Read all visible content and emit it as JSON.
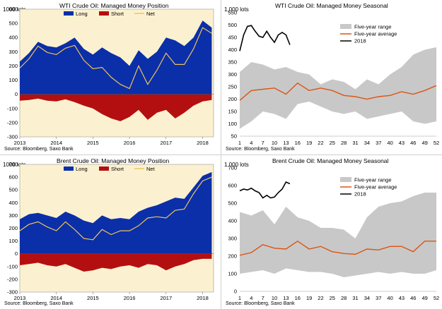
{
  "colors": {
    "plot_bg_left": "#fbf1d0",
    "long": "#0a2fa8",
    "short": "#b40f10",
    "net": "#f0c25a",
    "range": "#c8c8c8",
    "average": "#dd5412",
    "current": "#000000"
  },
  "panels": [
    {
      "id": "wti-position",
      "title": "WTI Crude Oil: Managed Money Position",
      "unit": "1000 lots",
      "source": "Source: Bloomberg, Saxo Bank",
      "legend": [
        "Long",
        "Short",
        "Net"
      ]
    },
    {
      "id": "wti-seasonal",
      "title": "WTI Crude Oil: Managed Money Seasonal",
      "unit": "1,000 lots",
      "source": "Source: Bloomberg, Saxo Bank",
      "legend": [
        "Five-year range",
        "Five-year average",
        "2018"
      ]
    },
    {
      "id": "brent-position",
      "title": "Brent Crude Oil: Managed Money Position",
      "unit": "1000 lots",
      "source": "Source: Bloomberg, Saxo Bank",
      "legend": [
        "Long",
        "Short",
        "Net"
      ]
    },
    {
      "id": "brent-seasonal",
      "title": "Brent Crude Oil: Managed Money Seasonal",
      "unit": "1,000 lots",
      "source": "Source: Bloomberg, Saxo Bank",
      "legend": [
        "Five-year range",
        "Five-year average",
        "2018"
      ]
    }
  ],
  "chart_data": [
    {
      "type": "area",
      "title": "WTI Crude Oil: Managed Money Position",
      "ylabel": "1000 lots",
      "ylim": [
        -300,
        600
      ],
      "yticks": [
        -300,
        -200,
        -100,
        0,
        100,
        200,
        300,
        400,
        500,
        600
      ],
      "xlim": [
        2013,
        2018.3
      ],
      "xticks": [
        "2013",
        "2014",
        "2015",
        "2016",
        "2017",
        "2018"
      ],
      "x": [
        2013.0,
        2013.25,
        2013.5,
        2013.75,
        2014.0,
        2014.25,
        2014.5,
        2014.75,
        2015.0,
        2015.25,
        2015.5,
        2015.75,
        2016.0,
        2016.25,
        2016.5,
        2016.75,
        2017.0,
        2017.25,
        2017.5,
        2017.75,
        2018.0,
        2018.25
      ],
      "series": [
        {
          "name": "Long",
          "values": [
            230,
            290,
            370,
            340,
            330,
            360,
            400,
            320,
            280,
            330,
            290,
            260,
            200,
            310,
            250,
            300,
            400,
            380,
            340,
            400,
            520,
            470
          ]
        },
        {
          "name": "Short",
          "values": [
            -45,
            -40,
            -30,
            -45,
            -50,
            -35,
            -55,
            -80,
            -100,
            -140,
            -170,
            -190,
            -160,
            -110,
            -180,
            -130,
            -110,
            -170,
            -130,
            -80,
            -50,
            -40
          ]
        },
        {
          "name": "Net",
          "values": [
            185,
            250,
            340,
            295,
            280,
            325,
            345,
            240,
            180,
            190,
            120,
            70,
            40,
            200,
            70,
            170,
            290,
            210,
            210,
            320,
            470,
            430
          ]
        }
      ]
    },
    {
      "type": "line",
      "title": "WTI Crude Oil: Managed Money Seasonal",
      "ylabel": "1,000 lots",
      "ylim": [
        50,
        550
      ],
      "yticks": [
        50,
        100,
        150,
        200,
        250,
        300,
        350,
        400,
        450,
        500,
        550
      ],
      "xlim": [
        1,
        52
      ],
      "xticks": [
        1,
        4,
        7,
        10,
        13,
        16,
        19,
        22,
        25,
        28,
        31,
        34,
        37,
        40,
        43,
        46,
        49,
        52
      ],
      "range": {
        "name": "Five-year range",
        "x": [
          1,
          4,
          7,
          10,
          13,
          16,
          19,
          22,
          25,
          28,
          31,
          34,
          37,
          40,
          43,
          46,
          49,
          52
        ],
        "upper": [
          310,
          350,
          340,
          320,
          330,
          310,
          300,
          260,
          280,
          270,
          240,
          280,
          260,
          300,
          330,
          380,
          400,
          410
        ],
        "lower": [
          80,
          110,
          150,
          140,
          120,
          180,
          190,
          170,
          150,
          140,
          150,
          120,
          130,
          140,
          150,
          110,
          100,
          110
        ]
      },
      "series": [
        {
          "name": "Five-year average",
          "x": [
            1,
            4,
            7,
            10,
            13,
            16,
            19,
            22,
            25,
            28,
            31,
            34,
            37,
            40,
            43,
            46,
            49,
            52
          ],
          "values": [
            195,
            235,
            240,
            245,
            220,
            265,
            235,
            245,
            235,
            215,
            210,
            200,
            210,
            215,
            230,
            220,
            235,
            255
          ]
        },
        {
          "name": "2018",
          "x": [
            1,
            2,
            3,
            4,
            5,
            6,
            7,
            8,
            9,
            10,
            11,
            12,
            13,
            14
          ],
          "values": [
            395,
            460,
            495,
            498,
            475,
            455,
            450,
            475,
            450,
            430,
            460,
            470,
            460,
            420
          ]
        }
      ]
    },
    {
      "type": "area",
      "title": "Brent Crude Oil: Managed Money Position",
      "ylabel": "1000 lots",
      "ylim": [
        -300,
        700
      ],
      "yticks": [
        -300,
        -200,
        -100,
        0,
        100,
        200,
        300,
        400,
        500,
        600,
        700
      ],
      "xlim": [
        2013,
        2018.3
      ],
      "xticks": [
        "2013",
        "2014",
        "2015",
        "2016",
        "2017",
        "2018"
      ],
      "x": [
        2013.0,
        2013.25,
        2013.5,
        2013.75,
        2014.0,
        2014.25,
        2014.5,
        2014.75,
        2015.0,
        2015.25,
        2015.5,
        2015.75,
        2016.0,
        2016.25,
        2016.5,
        2016.75,
        2017.0,
        2017.25,
        2017.5,
        2017.75,
        2018.0,
        2018.25
      ],
      "series": [
        {
          "name": "Long",
          "values": [
            270,
            310,
            320,
            300,
            280,
            330,
            300,
            260,
            240,
            300,
            270,
            280,
            270,
            330,
            360,
            380,
            410,
            440,
            430,
            520,
            610,
            640
          ]
        },
        {
          "name": "Short",
          "values": [
            -90,
            -80,
            -70,
            -90,
            -100,
            -80,
            -110,
            -140,
            -130,
            -110,
            -120,
            -100,
            -90,
            -110,
            -80,
            -90,
            -130,
            -100,
            -80,
            -50,
            -40,
            -40
          ]
        },
        {
          "name": "Net",
          "values": [
            180,
            230,
            250,
            210,
            180,
            250,
            190,
            120,
            110,
            190,
            150,
            180,
            180,
            220,
            280,
            290,
            280,
            340,
            350,
            470,
            570,
            600
          ]
        }
      ]
    },
    {
      "type": "line",
      "title": "Brent Crude Oil: Managed Money Seasonal",
      "ylabel": "1,000 lots",
      "ylim": [
        0,
        700
      ],
      "yticks": [
        0,
        100,
        200,
        300,
        400,
        500,
        600,
        700
      ],
      "xlim": [
        1,
        52
      ],
      "xticks": [
        1,
        4,
        7,
        10,
        13,
        16,
        19,
        22,
        25,
        28,
        31,
        34,
        37,
        40,
        43,
        46,
        49,
        52
      ],
      "range": {
        "name": "Five-year range",
        "x": [
          1,
          4,
          7,
          10,
          13,
          16,
          19,
          22,
          25,
          28,
          31,
          34,
          37,
          40,
          43,
          46,
          49,
          52
        ],
        "upper": [
          450,
          430,
          460,
          380,
          480,
          420,
          400,
          360,
          360,
          350,
          300,
          420,
          480,
          500,
          510,
          540,
          560,
          560
        ],
        "lower": [
          100,
          110,
          120,
          100,
          130,
          120,
          110,
          110,
          100,
          80,
          90,
          100,
          110,
          100,
          110,
          100,
          100,
          120
        ]
      },
      "series": [
        {
          "name": "Five-year average",
          "x": [
            1,
            4,
            7,
            10,
            13,
            16,
            19,
            22,
            25,
            28,
            31,
            34,
            37,
            40,
            43,
            46,
            49,
            52
          ],
          "values": [
            205,
            220,
            265,
            245,
            240,
            285,
            240,
            255,
            225,
            215,
            210,
            240,
            235,
            255,
            255,
            225,
            285,
            285
          ]
        },
        {
          "name": "2018",
          "x": [
            1,
            2,
            3,
            4,
            5,
            6,
            7,
            8,
            9,
            10,
            11,
            12,
            13,
            14
          ],
          "values": [
            570,
            580,
            575,
            585,
            570,
            560,
            530,
            545,
            530,
            535,
            560,
            580,
            620,
            610
          ]
        }
      ]
    }
  ]
}
